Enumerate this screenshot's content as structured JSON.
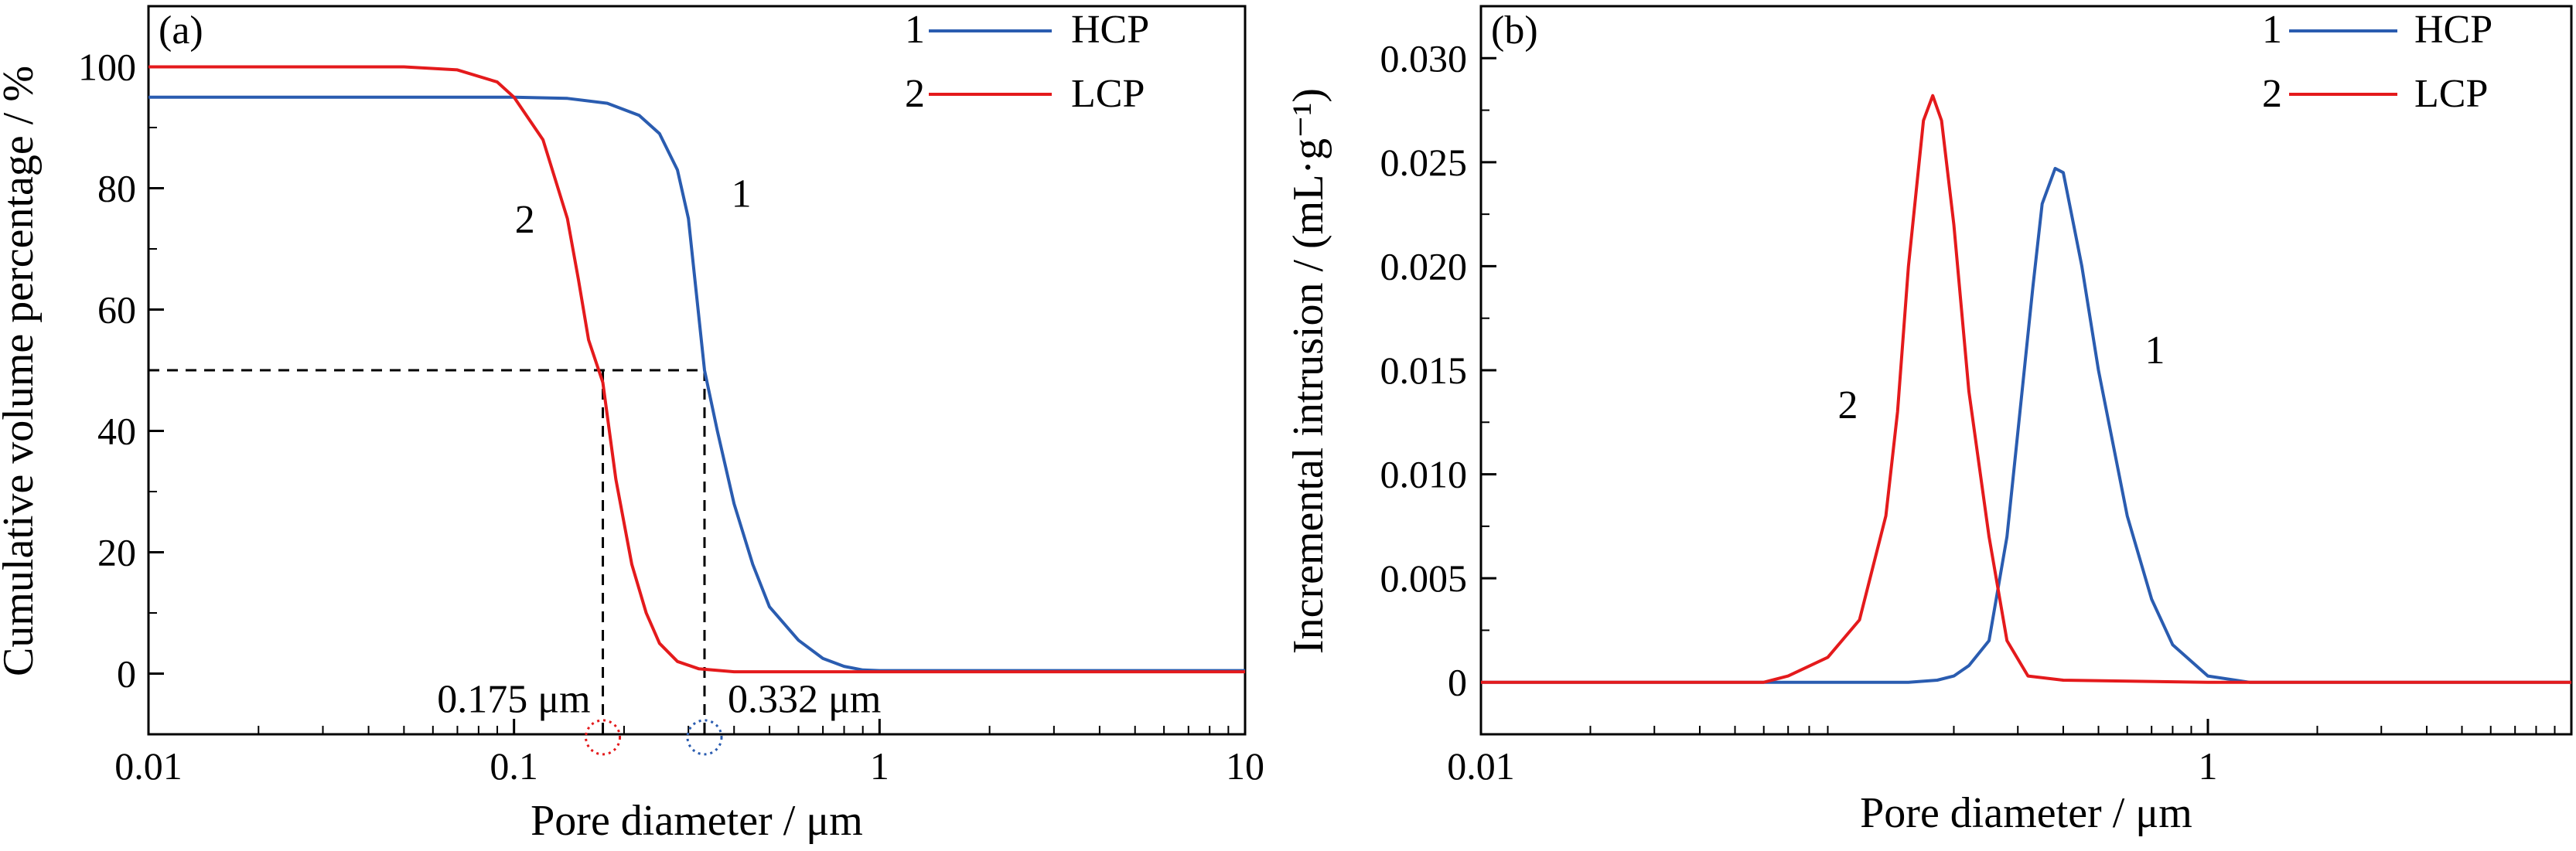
{
  "chart_data": [
    {
      "type": "line",
      "panel_label": "(a)",
      "xlabel": "Pore diameter / μm",
      "ylabel": "Cumulative volume percentage / %",
      "xscale": "log",
      "xlim": [
        0.01,
        10
      ],
      "ylim": [
        -10,
        110
      ],
      "x_ticks": [
        "0.01",
        "0.1",
        "1",
        "10"
      ],
      "y_ticks": [
        "0",
        "20",
        "40",
        "60",
        "80",
        "100"
      ],
      "legend": {
        "placement": "top-right",
        "entries": [
          {
            "number": "1",
            "label": "HCP"
          },
          {
            "number": "2",
            "label": "LCP"
          }
        ]
      },
      "series": [
        {
          "name": "HCP",
          "color": "#2a5cb0",
          "curve_label": "1",
          "x": [
            0.01,
            0.05,
            0.1,
            0.14,
            0.18,
            0.22,
            0.25,
            0.28,
            0.3,
            0.332,
            0.36,
            0.4,
            0.45,
            0.5,
            0.6,
            0.7,
            0.8,
            0.9,
            1.0,
            1.5,
            3,
            10
          ],
          "y": [
            95,
            95,
            95,
            94.8,
            94,
            92,
            89,
            83,
            75,
            50,
            40,
            28,
            18,
            11,
            5.5,
            2.5,
            1.2,
            0.6,
            0.5,
            0.5,
            0.5,
            0.5
          ]
        },
        {
          "name": "LCP",
          "color": "#e41a1c",
          "curve_label": "2",
          "x": [
            0.01,
            0.05,
            0.07,
            0.09,
            0.1,
            0.12,
            0.14,
            0.15,
            0.16,
            0.175,
            0.19,
            0.21,
            0.23,
            0.25,
            0.28,
            0.32,
            0.4,
            0.6,
            1.0,
            10
          ],
          "y": [
            100,
            100,
            99.5,
            97.5,
            95,
            88,
            75,
            65,
            55,
            48,
            32,
            18,
            10,
            5,
            2,
            0.8,
            0.3,
            0.3,
            0.3,
            0.3
          ]
        }
      ],
      "reference_lines": [
        {
          "y": 50,
          "x_hcp": 0.332,
          "x_lcp": 0.175
        }
      ],
      "annotations": [
        {
          "text": "0.175 μm",
          "x": 0.175
        },
        {
          "text": "0.332 μm",
          "x": 0.332
        }
      ]
    },
    {
      "type": "line",
      "panel_label": "(b)",
      "xlabel": "Pore diameter / μm",
      "ylabel": "Incremental intrusion / (mL·g⁻¹)",
      "xscale": "log",
      "xlim": [
        0.01,
        10
      ],
      "ylim": [
        -0.0025,
        0.0325
      ],
      "x_ticks": [
        "0.01",
        "1"
      ],
      "y_ticks": [
        "0",
        "0.005",
        "0.010",
        "0.015",
        "0.020",
        "0.025",
        "0.030"
      ],
      "legend": {
        "placement": "top-right",
        "entries": [
          {
            "number": "1",
            "label": "HCP"
          },
          {
            "number": "2",
            "label": "LCP"
          }
        ]
      },
      "series": [
        {
          "name": "HCP",
          "color": "#2a5cb0",
          "curve_label": "1",
          "x": [
            0.01,
            0.1,
            0.15,
            0.18,
            0.2,
            0.22,
            0.25,
            0.28,
            0.3,
            0.33,
            0.35,
            0.38,
            0.4,
            0.45,
            0.5,
            0.6,
            0.7,
            0.8,
            1.0,
            1.3,
            10
          ],
          "y": [
            0,
            0,
            0,
            0.0001,
            0.0003,
            0.0008,
            0.002,
            0.007,
            0.012,
            0.019,
            0.023,
            0.0247,
            0.0245,
            0.02,
            0.015,
            0.008,
            0.004,
            0.0018,
            0.0003,
            0,
            0
          ]
        },
        {
          "name": "LCP",
          "color": "#e41a1c",
          "curve_label": "2",
          "x": [
            0.01,
            0.06,
            0.07,
            0.09,
            0.11,
            0.13,
            0.14,
            0.15,
            0.165,
            0.175,
            0.185,
            0.2,
            0.22,
            0.25,
            0.28,
            0.32,
            0.4,
            1.0,
            10
          ],
          "y": [
            0,
            0,
            0.0003,
            0.0012,
            0.003,
            0.008,
            0.013,
            0.02,
            0.027,
            0.0282,
            0.027,
            0.022,
            0.014,
            0.007,
            0.002,
            0.0003,
            0.0001,
            0,
            0
          ]
        }
      ]
    }
  ]
}
